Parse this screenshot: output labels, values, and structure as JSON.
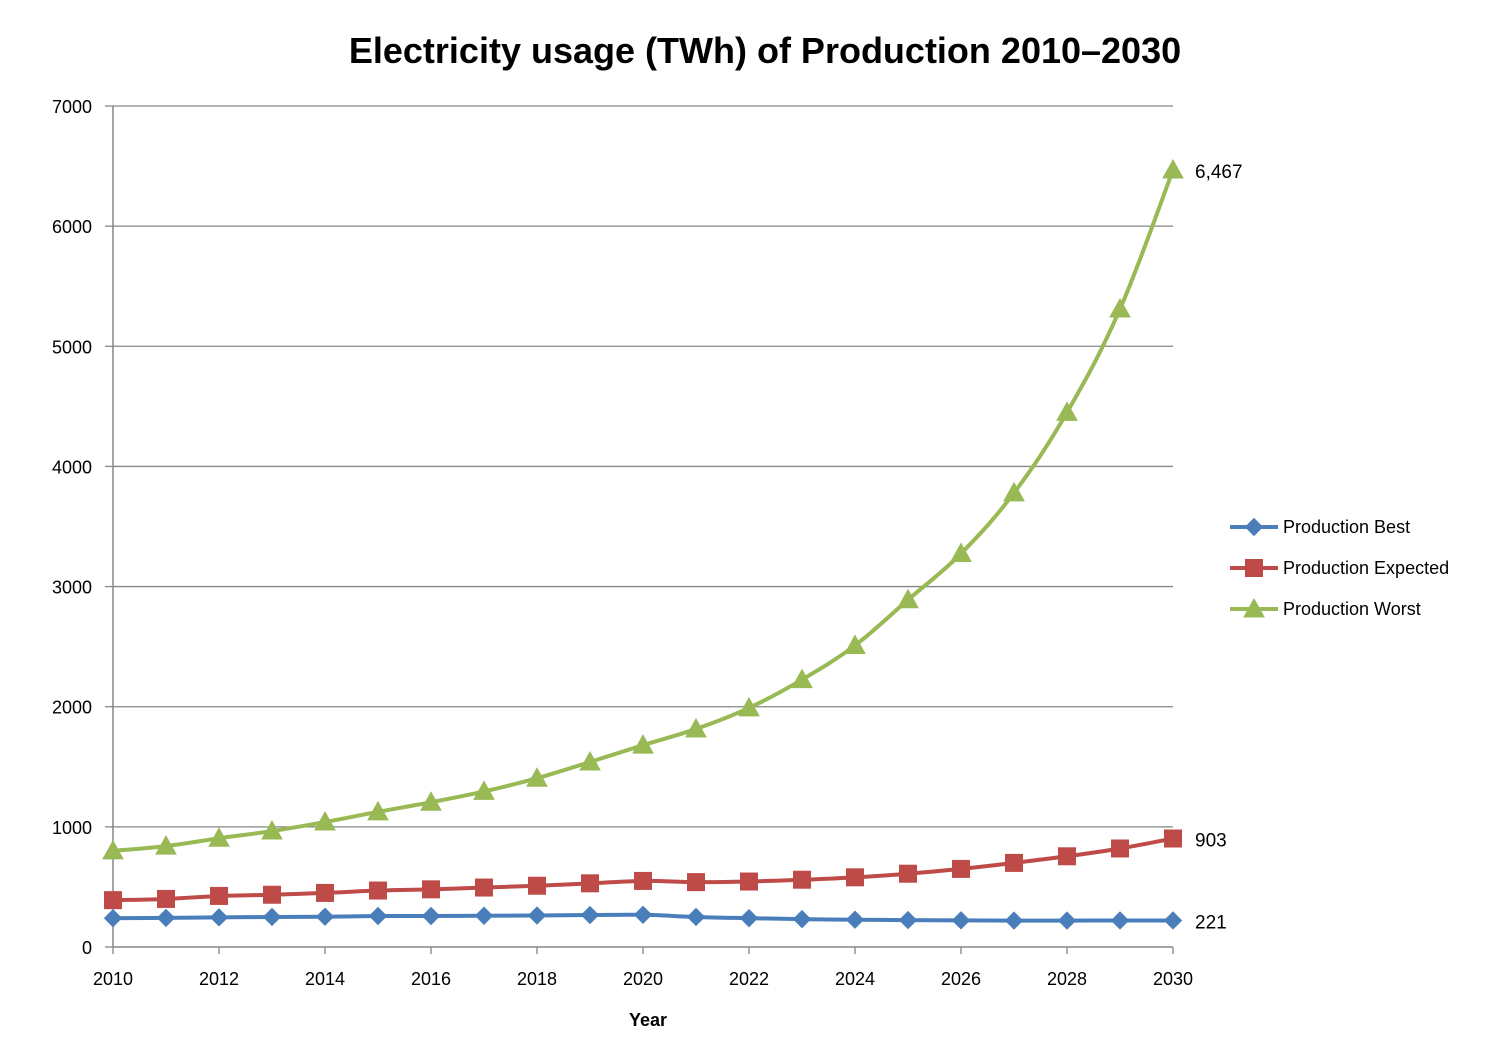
{
  "chart_data": {
    "type": "line",
    "title": "Electricity usage (TWh) of Production 2010–2030",
    "xlabel": "Year",
    "ylabel": "",
    "ylim": [
      0,
      7000
    ],
    "xlim": [
      2010,
      2030
    ],
    "y_ticks": [
      "0",
      "1000",
      "2000",
      "3000",
      "4000",
      "5000",
      "6000",
      "7000"
    ],
    "x_ticks": [
      "2010",
      "2012",
      "2014",
      "2016",
      "2018",
      "2020",
      "2022",
      "2024",
      "2026",
      "2028",
      "2030"
    ],
    "grid": "horizontal",
    "legend_position": "right",
    "x": [
      2010,
      2011,
      2012,
      2013,
      2014,
      2015,
      2016,
      2017,
      2018,
      2019,
      2020,
      2021,
      2022,
      2023,
      2024,
      2025,
      2026,
      2027,
      2028,
      2029,
      2030
    ],
    "series": [
      {
        "name": "Production Best",
        "color": "#4a7ebb",
        "marker": "diamond",
        "values": [
          240,
          242,
          247,
          250,
          252,
          258,
          258,
          260,
          262,
          266,
          268,
          250,
          240,
          232,
          227,
          224,
          222,
          220,
          220,
          221,
          221
        ],
        "end_label": "221"
      },
      {
        "name": "Production Expected",
        "color": "#be4b48",
        "marker": "square",
        "values": [
          390,
          400,
          425,
          435,
          450,
          470,
          480,
          495,
          510,
          530,
          550,
          540,
          545,
          560,
          580,
          610,
          650,
          700,
          755,
          820,
          903
        ],
        "end_label": "903"
      },
      {
        "name": "Production Worst",
        "color": "#98b954",
        "marker": "triangle",
        "values": [
          800,
          840,
          905,
          965,
          1040,
          1125,
          1205,
          1295,
          1405,
          1540,
          1680,
          1815,
          1990,
          2225,
          2510,
          2890,
          3275,
          3780,
          4450,
          5310,
          6467
        ],
        "end_label": "6,467"
      }
    ]
  }
}
